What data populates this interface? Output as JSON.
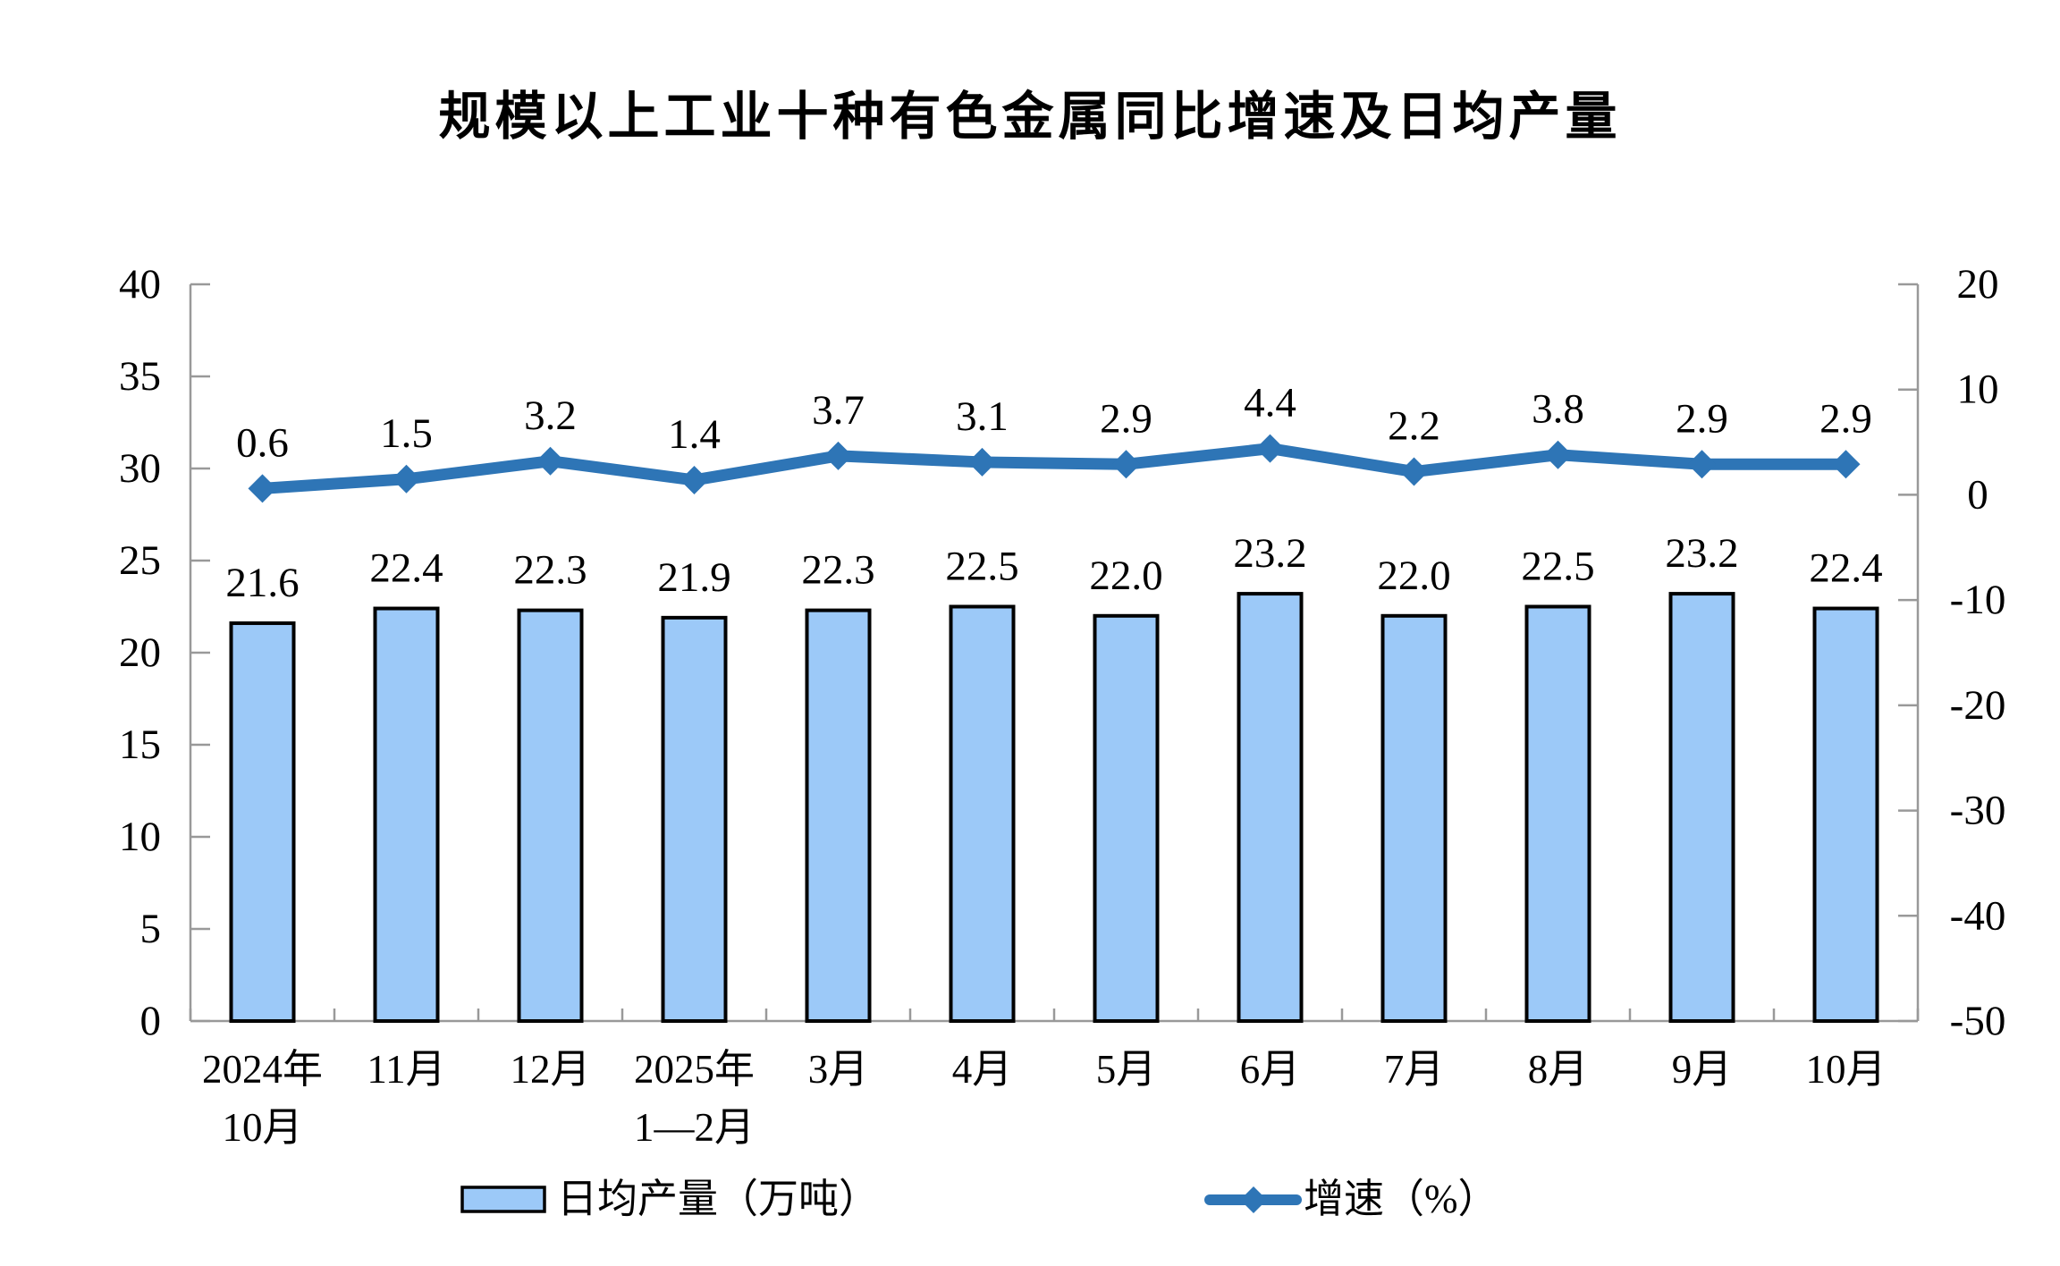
{
  "title": "规模以上工业十种有色金属同比增速及日均产量",
  "legend": {
    "bar_label": "日均产量（万吨）",
    "line_label": "增速（%）"
  },
  "colors": {
    "bar_fill": "#9CC9F8",
    "bar_border": "#000000",
    "line": "#2E75B6",
    "axis": "#999999",
    "text": "#000000",
    "background": "#FFFFFF"
  },
  "chart_data": {
    "type": "combo-bar-line",
    "title": "规模以上工业十种有色金属同比增速及日均产量",
    "categories": [
      "2024年10月",
      "11月",
      "12月",
      "2025年1—2月",
      "3月",
      "4月",
      "5月",
      "6月",
      "7月",
      "8月",
      "9月",
      "10月"
    ],
    "category_label_lines": [
      [
        "2024年",
        "10月"
      ],
      [
        "11月"
      ],
      [
        "12月"
      ],
      [
        "2025年",
        "1—2月"
      ],
      [
        "3月"
      ],
      [
        "4月"
      ],
      [
        "5月"
      ],
      [
        "6月"
      ],
      [
        "7月"
      ],
      [
        "8月"
      ],
      [
        "9月"
      ],
      [
        "10月"
      ]
    ],
    "series": [
      {
        "name": "日均产量（万吨）",
        "type": "bar",
        "y_axis": "left",
        "unit": "万吨",
        "values": [
          21.6,
          22.4,
          22.3,
          21.9,
          22.3,
          22.5,
          22.0,
          23.2,
          22.0,
          22.5,
          23.2,
          22.4
        ]
      },
      {
        "name": "增速（%）",
        "type": "line",
        "y_axis": "right",
        "unit": "%",
        "values": [
          0.6,
          1.5,
          3.2,
          1.4,
          3.7,
          3.1,
          2.9,
          4.4,
          2.2,
          3.8,
          2.9,
          2.9
        ]
      }
    ],
    "left_axis": {
      "min": 0,
      "max": 40,
      "step": 5,
      "ticks": [
        40,
        35,
        30,
        25,
        20,
        15,
        10,
        5,
        0
      ]
    },
    "right_axis": {
      "min": -50,
      "max": 20,
      "step": 10,
      "ticks": [
        20,
        10,
        0,
        -10,
        -20,
        -30,
        -40,
        -50
      ]
    },
    "value_label_decimals": 1,
    "grid": false,
    "legend_position": "bottom"
  }
}
